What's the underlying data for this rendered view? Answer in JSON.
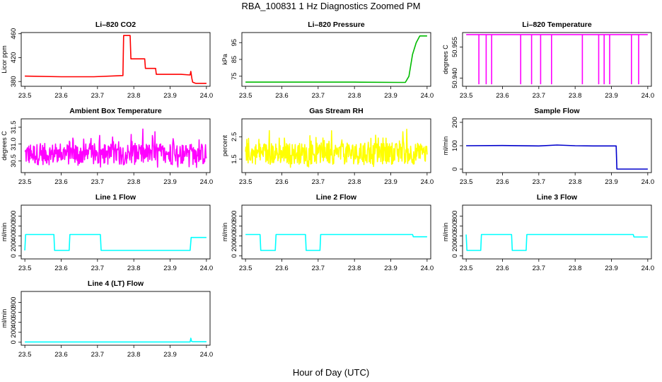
{
  "page": {
    "title": "RBA_100831  1 Hz Diagnostics Zoomed PM",
    "xlabel": "Hour of Day (UTC)"
  },
  "chart_data": [
    {
      "type": "line",
      "title": "Li–820 CO2",
      "ylabel": "Licor ppm",
      "color": "#ff0000",
      "xlim": [
        23.49,
        24.01
      ],
      "ylim": [
        372,
        462
      ],
      "xticks": [
        "23.5",
        "23.6",
        "23.7",
        "23.8",
        "23.9",
        "24.0"
      ],
      "yticks": [
        "380",
        "420",
        "460"
      ],
      "x": [
        23.5,
        23.6,
        23.69,
        23.77,
        23.772,
        23.79,
        23.792,
        23.83,
        23.832,
        23.86,
        23.862,
        23.93,
        23.955,
        23.957,
        23.96,
        23.962,
        23.97,
        24.0
      ],
      "y": [
        389,
        388,
        388,
        390,
        457,
        457,
        418,
        418,
        402,
        402,
        392,
        392,
        391,
        397,
        385,
        379,
        377,
        377
      ]
    },
    {
      "type": "line",
      "title": "Li–820 Pressure",
      "ylabel": "kPa",
      "color": "#00bb00",
      "xlim": [
        23.49,
        24.01
      ],
      "ylim": [
        69,
        101
      ],
      "xticks": [
        "23.5",
        "23.6",
        "23.7",
        "23.8",
        "23.9",
        "24.0"
      ],
      "yticks": [
        "75",
        "85",
        "95"
      ],
      "x": [
        23.5,
        23.8,
        23.92,
        23.94,
        23.95,
        23.96,
        23.97,
        23.98,
        24.0
      ],
      "y": [
        71.5,
        71.5,
        71.3,
        71.3,
        75,
        88,
        95,
        99,
        99
      ]
    },
    {
      "type": "line",
      "title": "Li–820 Temperature",
      "ylabel": "degrees C",
      "color": "#ff00ff",
      "xlim": [
        23.49,
        24.01
      ],
      "ylim": [
        50.936,
        50.962
      ],
      "xticks": [
        "23.5",
        "23.6",
        "23.7",
        "23.8",
        "23.9",
        "24.0"
      ],
      "yticks": [
        "50.940",
        "50.955"
      ],
      "baseline": 50.961,
      "dropouts": [
        23.535,
        23.555,
        23.57,
        23.65,
        23.68,
        23.705,
        23.735,
        23.82,
        23.865,
        23.88,
        23.895,
        23.955,
        23.975
      ],
      "drop_value": 50.937
    },
    {
      "type": "line",
      "title": "Ambient Box Temperature",
      "ylabel": "degrees C",
      "color": "#ff00ff",
      "xlim": [
        23.49,
        24.01
      ],
      "ylim": [
        30.15,
        31.75
      ],
      "xticks": [
        "23.5",
        "23.6",
        "23.7",
        "23.8",
        "23.9",
        "24.0"
      ],
      "yticks": [
        "30.5",
        "31.0",
        "31.5"
      ],
      "mean": 30.7,
      "noise": 0.4
    },
    {
      "type": "line",
      "title": "Gas Stream RH",
      "ylabel": "percent",
      "color": "#ffff00",
      "xlim": [
        23.49,
        24.01
      ],
      "ylim": [
        0.9,
        3.3
      ],
      "xticks": [
        "23.5",
        "23.6",
        "23.7",
        "23.8",
        "23.9",
        "24.0"
      ],
      "yticks": [
        "1.5",
        "2.5"
      ],
      "mean": 1.75,
      "noise": 0.6
    },
    {
      "type": "line",
      "title": "Sample Flow",
      "ylabel": "ml/min",
      "color": "#0000cc",
      "xlim": [
        23.49,
        24.01
      ],
      "ylim": [
        -15,
        215
      ],
      "xticks": [
        "23.5",
        "23.6",
        "23.7",
        "23.8",
        "23.9",
        "24.0"
      ],
      "yticks": [
        "0",
        "100",
        "200"
      ],
      "x": [
        23.5,
        23.6,
        23.7,
        23.75,
        23.8,
        23.85,
        23.913,
        23.915,
        23.93,
        24.0
      ],
      "y": [
        100,
        101,
        99,
        103,
        100,
        99,
        99,
        0,
        0,
        0
      ]
    },
    {
      "type": "line",
      "title": "Line 1 Flow",
      "ylabel": "ml/min",
      "color": "#00ffff",
      "xlim": [
        23.49,
        24.01
      ],
      "ylim": [
        -60,
        1020
      ],
      "xticks": [
        "23.5",
        "23.6",
        "23.7",
        "23.8",
        "23.9",
        "24.0"
      ],
      "yticks": [
        "0",
        "200",
        "400",
        "600",
        "800"
      ],
      "x": [
        23.5,
        23.502,
        23.58,
        23.582,
        23.622,
        23.624,
        23.708,
        23.71,
        23.955,
        23.958,
        24.0
      ],
      "y": [
        110,
        430,
        430,
        110,
        110,
        430,
        430,
        110,
        110,
        370,
        370
      ]
    },
    {
      "type": "line",
      "title": "Line 2 Flow",
      "ylabel": "ml/min",
      "color": "#00ffff",
      "xlim": [
        23.49,
        24.01
      ],
      "ylim": [
        -60,
        1020
      ],
      "xticks": [
        "23.5",
        "23.6",
        "23.7",
        "23.8",
        "23.9",
        "24.0"
      ],
      "yticks": [
        "0",
        "200",
        "400",
        "600",
        "800"
      ],
      "x": [
        23.5,
        23.54,
        23.542,
        23.582,
        23.584,
        23.665,
        23.667,
        23.705,
        23.707,
        23.96,
        23.962,
        24.0
      ],
      "y": [
        430,
        430,
        110,
        110,
        430,
        430,
        110,
        110,
        430,
        430,
        385,
        385
      ]
    },
    {
      "type": "line",
      "title": "Line 3 Flow",
      "ylabel": "ml/min",
      "color": "#00ffff",
      "xlim": [
        23.49,
        24.01
      ],
      "ylim": [
        -60,
        1020
      ],
      "xticks": [
        "23.5",
        "23.6",
        "23.7",
        "23.8",
        "23.9",
        "24.0"
      ],
      "yticks": [
        "0",
        "200",
        "400",
        "600",
        "800"
      ],
      "x": [
        23.5,
        23.502,
        23.54,
        23.542,
        23.625,
        23.627,
        23.665,
        23.667,
        23.96,
        23.962,
        24.0
      ],
      "y": [
        430,
        110,
        110,
        430,
        430,
        110,
        110,
        430,
        430,
        380,
        380
      ]
    },
    {
      "type": "line",
      "title": "Line 4 (LT) Flow",
      "ylabel": "ml/min",
      "color": "#00ffff",
      "xlim": [
        23.49,
        24.01
      ],
      "ylim": [
        -60,
        1020
      ],
      "xticks": [
        "23.5",
        "23.6",
        "23.7",
        "23.8",
        "23.9",
        "24.0"
      ],
      "yticks": [
        "0",
        "200",
        "400",
        "600",
        "800"
      ],
      "x": [
        23.5,
        23.8,
        23.955,
        23.957,
        23.959,
        23.962,
        24.0
      ],
      "y": [
        5,
        5,
        5,
        80,
        20,
        10,
        10
      ]
    }
  ]
}
